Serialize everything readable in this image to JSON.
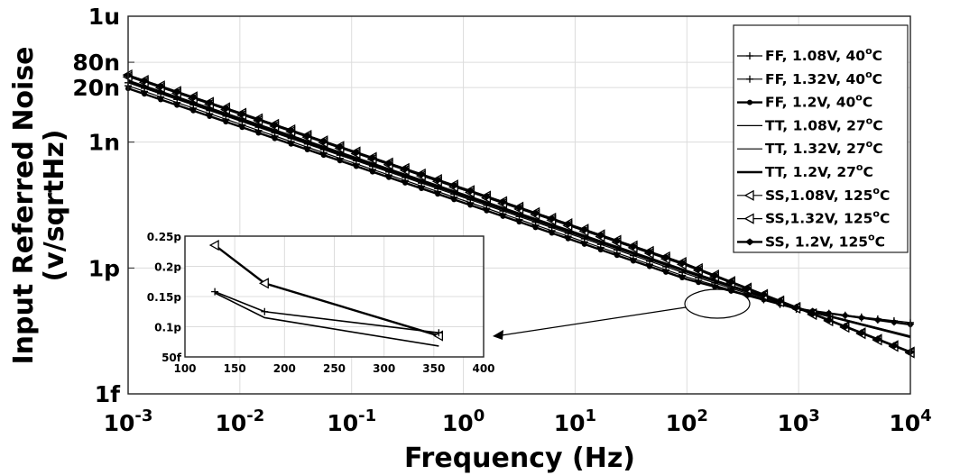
{
  "chart_data": [
    {
      "type": "line",
      "title": "",
      "xlabel": "Frequency (Hz)",
      "ylabel": "Input Referred Noise (v/sqrtHz)",
      "xscale": "log",
      "yscale": "log",
      "xlim": [
        0.001,
        10000
      ],
      "ylim": [
        1e-15,
        1e-06
      ],
      "grid": true,
      "legend_position": "top-right",
      "x_ticks": [
        {
          "base": "10",
          "exp": "-3"
        },
        {
          "base": "10",
          "exp": "-2"
        },
        {
          "base": "10",
          "exp": "-1"
        },
        {
          "base": "10",
          "exp": "0"
        },
        {
          "base": "10",
          "exp": "1"
        },
        {
          "base": "10",
          "exp": "2"
        },
        {
          "base": "10",
          "exp": "3"
        },
        {
          "base": "10",
          "exp": "4"
        }
      ],
      "y_ticks": [
        {
          "label": "1f",
          "value": 1e-15
        },
        {
          "label": "1p",
          "value": 1e-12
        },
        {
          "label": "1n",
          "value": 1e-09
        },
        {
          "label": "20n",
          "value": 2e-08
        },
        {
          "label": "80n",
          "value": 8e-08
        },
        {
          "label": "1u",
          "value": 1e-06
        }
      ],
      "series": [
        {
          "name": "FF, 1.08V, 40",
          "suffix": "o",
          "unit": "C",
          "marker": "plus",
          "width": 1.2,
          "x": [
            0.001,
            0.01,
            0.1,
            1,
            10,
            100,
            1000,
            10000
          ],
          "y": [
            2.6e-08,
            3.2e-09,
            3.9e-10,
            4.8e-11,
            5.9e-12,
            7.2e-13,
            1e-13,
            5e-14
          ]
        },
        {
          "name": "FF, 1.32V, 40",
          "suffix": "o",
          "unit": "C",
          "marker": "plus",
          "width": 1.2,
          "x": [
            0.001,
            0.01,
            0.1,
            1,
            10,
            100,
            1000,
            10000
          ],
          "y": [
            2.2e-08,
            2.7e-09,
            3.3e-10,
            4.1e-11,
            5e-12,
            6.1e-13,
            1e-13,
            4.6e-14
          ]
        },
        {
          "name": "FF, 1.2V, 40",
          "suffix": "o",
          "unit": "C",
          "marker": "dot",
          "width": 2.4,
          "x": [
            0.001,
            0.01,
            0.1,
            1,
            10,
            100,
            1000,
            10000
          ],
          "y": [
            1.9e-08,
            2.35e-09,
            2.9e-10,
            3.6e-11,
            4.4e-12,
            5.4e-13,
            1.05e-13,
            4.5e-14
          ]
        },
        {
          "name": "TT, 1.08V, 27",
          "suffix": "o",
          "unit": "C",
          "marker": "none",
          "width": 1.2,
          "x": [
            0.001,
            0.01,
            0.1,
            1,
            10,
            100,
            1000,
            10000
          ],
          "y": [
            3e-08,
            3.8e-09,
            4.7e-10,
            5.8e-11,
            7.2e-12,
            8.8e-13,
            1.1e-13,
            2.4e-14
          ]
        },
        {
          "name": "TT, 1.32V, 27",
          "suffix": "o",
          "unit": "C",
          "marker": "none",
          "width": 1.2,
          "x": [
            0.001,
            0.01,
            0.1,
            1,
            10,
            100,
            1000,
            10000
          ],
          "y": [
            2.6e-08,
            3.3e-09,
            4.1e-10,
            5.1e-11,
            6.3e-12,
            7.8e-13,
            1.05e-13,
            2.2e-14
          ]
        },
        {
          "name": "TT, 1.2V, 27",
          "suffix": "o",
          "unit": "C",
          "marker": "none",
          "width": 2.4,
          "x": [
            0.001,
            0.01,
            0.1,
            1,
            10,
            100,
            1000,
            10000
          ],
          "y": [
            2.8e-08,
            3.5e-09,
            4.4e-10,
            5.5e-11,
            6.8e-12,
            8.4e-13,
            1.1e-13,
            2.3e-14
          ]
        },
        {
          "name": "SS,1.08V, 125",
          "suffix": "o",
          "unit": "C",
          "marker": "triangle",
          "width": 1.2,
          "x": [
            0.001,
            0.01,
            0.1,
            1,
            10,
            100,
            1000,
            10000
          ],
          "y": [
            4e-08,
            5.1e-09,
            6.4e-10,
            8e-11,
            1e-11,
            1.25e-12,
            1.1e-13,
            1e-14
          ]
        },
        {
          "name": "SS,1.32V, 125",
          "suffix": "o",
          "unit": "C",
          "marker": "triangle",
          "width": 1.2,
          "x": [
            0.001,
            0.01,
            0.1,
            1,
            10,
            100,
            1000,
            10000
          ],
          "y": [
            3.6e-08,
            4.6e-09,
            5.8e-10,
            7.2e-11,
            9e-12,
            1.12e-12,
            1.05e-13,
            9.5e-15
          ]
        },
        {
          "name": "SS, 1.2V, 125",
          "suffix": "o",
          "unit": "C",
          "marker": "diamond",
          "width": 2.4,
          "x": [
            0.001,
            0.01,
            0.1,
            1,
            10,
            100,
            1000,
            10000
          ],
          "y": [
            3.9e-08,
            4.9e-09,
            6.2e-10,
            7.8e-11,
            9.7e-12,
            1.2e-12,
            1.1e-13,
            1e-14
          ]
        }
      ]
    },
    {
      "type": "line",
      "title": "",
      "xlabel": "",
      "ylabel": "",
      "xlim": [
        100,
        400
      ],
      "ylim": [
        0.05,
        0.25
      ],
      "grid": true,
      "x_ticks": [
        "100",
        "150",
        "200",
        "250",
        "300",
        "350",
        "400"
      ],
      "y_ticks": [
        {
          "label": "50f",
          "value": 0.05
        },
        {
          "label": "0.1p",
          "value": 0.1
        },
        {
          "label": "0.15p",
          "value": 0.15
        },
        {
          "label": "0.2p",
          "value": 0.2
        },
        {
          "label": "0.25p",
          "value": 0.25
        }
      ],
      "series": [
        {
          "marker": "triangle",
          "width": 2.4,
          "x": [
            130,
            180,
            355
          ],
          "y": [
            0.235,
            0.172,
            0.085
          ]
        },
        {
          "marker": "plus",
          "width": 1.6,
          "x": [
            130,
            180,
            355
          ],
          "y": [
            0.158,
            0.125,
            0.09
          ]
        },
        {
          "marker": "none",
          "width": 1.6,
          "x": [
            130,
            180,
            355
          ],
          "y": [
            0.156,
            0.115,
            0.068
          ]
        }
      ]
    }
  ]
}
